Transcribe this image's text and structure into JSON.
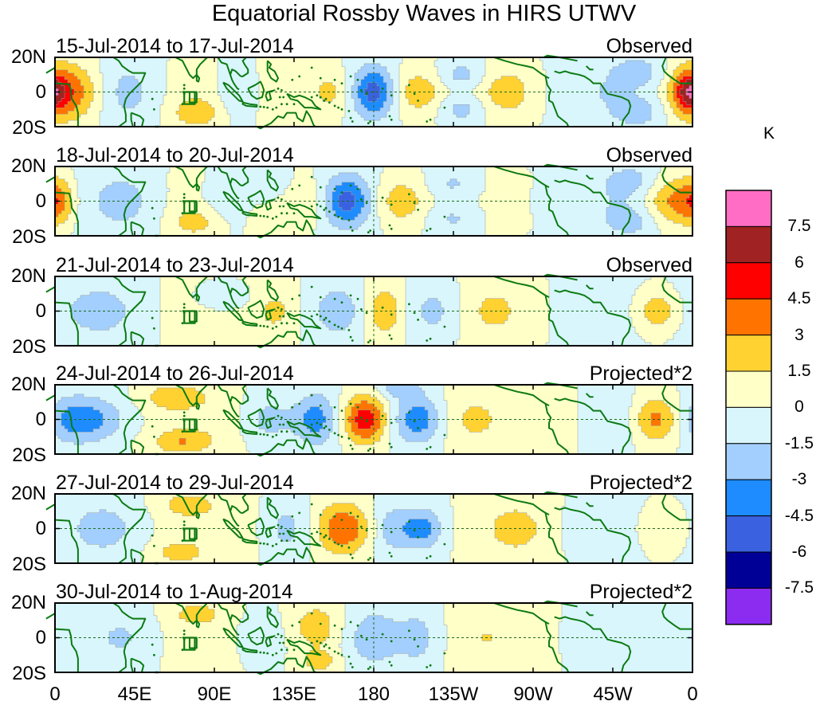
{
  "chart_data": {
    "type": "heatmap",
    "title": "Equatorial Rossby Waves in HIRS UTWV",
    "units": "K",
    "x_tick_labels": [
      "0",
      "45E",
      "90E",
      "135E",
      "180",
      "135W",
      "90W",
      "45W",
      "0"
    ],
    "y_tick_labels": [
      "20N",
      "0",
      "20S"
    ],
    "colorbar": {
      "levels": [
        -7.5,
        -6,
        -4.5,
        -3,
        -1.5,
        0,
        1.5,
        3,
        4.5,
        6,
        7.5
      ],
      "level_labels": [
        "7.5",
        "6",
        "4.5",
        "3",
        "1.5",
        "0",
        "-1.5",
        "-3",
        "-4.5",
        "-6",
        "-7.5"
      ],
      "colors": [
        "#8c2cf0",
        "#000096",
        "#3a62e0",
        "#1e8cff",
        "#a3cfff",
        "#d8f6fc",
        "#ffffc8",
        "#ffd232",
        "#ff7400",
        "#ff0000",
        "#a02222",
        "#ff6ec4"
      ]
    },
    "panels": [
      {
        "dates": "15-Jul-2014 to 17-Jul-2014",
        "kind": "Observed",
        "blobs": [
          {
            "lon": 5,
            "lat": 0,
            "amp": 5.2,
            "sx": 15,
            "sy": 12
          },
          {
            "lon": 358,
            "lat": 0,
            "amp": 4.0,
            "sx": 6,
            "sy": 8
          },
          {
            "lon": 180,
            "lat": 0,
            "amp": -4.8,
            "sx": 8,
            "sy": 10
          },
          {
            "lon": 155,
            "lat": 0,
            "amp": 2.4,
            "sx": 9,
            "sy": 10
          },
          {
            "lon": 205,
            "lat": 0,
            "amp": 2.8,
            "sx": 11,
            "sy": 10
          },
          {
            "lon": 230,
            "lat": 10,
            "amp": -2.3,
            "sx": 10,
            "sy": 6
          },
          {
            "lon": 230,
            "lat": -10,
            "amp": -2.3,
            "sx": 10,
            "sy": 6
          },
          {
            "lon": 255,
            "lat": 0,
            "amp": 2.0,
            "sx": 12,
            "sy": 10
          },
          {
            "lon": 40,
            "lat": 0,
            "amp": -2.2,
            "sx": 14,
            "sy": 14
          },
          {
            "lon": 105,
            "lat": 0,
            "amp": -2.1,
            "sx": 10,
            "sy": 12
          },
          {
            "lon": 80,
            "lat": -12,
            "amp": 2.2,
            "sx": 10,
            "sy": 6
          },
          {
            "lon": 125,
            "lat": 0,
            "amp": 1.6,
            "sx": 10,
            "sy": 12
          },
          {
            "lon": 300,
            "lat": 0,
            "amp": -1.6,
            "sx": 25,
            "sy": 14
          },
          {
            "lon": 330,
            "lat": 12,
            "amp": -1.7,
            "sx": 10,
            "sy": 6
          },
          {
            "lon": 330,
            "lat": -12,
            "amp": -1.7,
            "sx": 10,
            "sy": 6
          }
        ]
      },
      {
        "dates": "18-Jul-2014 to 20-Jul-2014",
        "kind": "Observed",
        "blobs": [
          {
            "lon": 350,
            "lat": 0,
            "amp": 4.3,
            "sx": 12,
            "sy": 10
          },
          {
            "lon": 2,
            "lat": 0,
            "amp": 2.8,
            "sx": 6,
            "sy": 10
          },
          {
            "lon": 165,
            "lat": 0,
            "amp": -4.6,
            "sx": 9,
            "sy": 10
          },
          {
            "lon": 195,
            "lat": 0,
            "amp": 2.9,
            "sx": 11,
            "sy": 10
          },
          {
            "lon": 225,
            "lat": 10,
            "amp": -1.7,
            "sx": 10,
            "sy": 6
          },
          {
            "lon": 225,
            "lat": -10,
            "amp": -1.7,
            "sx": 10,
            "sy": 6
          },
          {
            "lon": 140,
            "lat": 0,
            "amp": 1.8,
            "sx": 9,
            "sy": 10
          },
          {
            "lon": 120,
            "lat": 10,
            "amp": -1.7,
            "sx": 10,
            "sy": 6
          },
          {
            "lon": 40,
            "lat": 0,
            "amp": -2.0,
            "sx": 15,
            "sy": 14
          },
          {
            "lon": 80,
            "lat": -12,
            "amp": 2.0,
            "sx": 10,
            "sy": 6
          },
          {
            "lon": 95,
            "lat": 0,
            "amp": -1.6,
            "sx": 10,
            "sy": 12
          },
          {
            "lon": 300,
            "lat": 0,
            "amp": -1.4,
            "sx": 28,
            "sy": 14
          },
          {
            "lon": 325,
            "lat": 12,
            "amp": -1.6,
            "sx": 9,
            "sy": 6
          },
          {
            "lon": 325,
            "lat": -12,
            "amp": -1.6,
            "sx": 9,
            "sy": 6
          }
        ]
      },
      {
        "dates": "21-Jul-2014 to 23-Jul-2014",
        "kind": "Observed",
        "blobs": [
          {
            "lon": 186,
            "lat": 0,
            "amp": 3.4,
            "sx": 9,
            "sy": 11
          },
          {
            "lon": 160,
            "lat": 0,
            "amp": -1.9,
            "sx": 10,
            "sy": 10
          },
          {
            "lon": 215,
            "lat": 0,
            "amp": -1.8,
            "sx": 12,
            "sy": 11
          },
          {
            "lon": 340,
            "lat": 0,
            "amp": 3.2,
            "sx": 10,
            "sy": 9
          },
          {
            "lon": 125,
            "lat": 0,
            "amp": 1.7,
            "sx": 9,
            "sy": 10
          },
          {
            "lon": 30,
            "lat": 0,
            "amp": -1.7,
            "sx": 18,
            "sy": 14
          },
          {
            "lon": 95,
            "lat": 8,
            "amp": -1.6,
            "sx": 12,
            "sy": 6
          },
          {
            "lon": 245,
            "lat": 0,
            "amp": 1.3,
            "sx": 14,
            "sy": 12
          },
          {
            "lon": 300,
            "lat": 0,
            "amp": -1.3,
            "sx": 20,
            "sy": 14
          }
        ]
      },
      {
        "dates": "24-Jul-2014 to 26-Jul-2014",
        "kind": "Projected*2",
        "blobs": [
          {
            "lon": 175,
            "lat": 0,
            "amp": 6.2,
            "sx": 9,
            "sy": 10
          },
          {
            "lon": 147,
            "lat": 0,
            "amp": -3.4,
            "sx": 8,
            "sy": 10
          },
          {
            "lon": 205,
            "lat": 0,
            "amp": -3.8,
            "sx": 9,
            "sy": 9
          },
          {
            "lon": 195,
            "lat": 18,
            "amp": -2.2,
            "sx": 9,
            "sy": 4
          },
          {
            "lon": 340,
            "lat": 0,
            "amp": 4.4,
            "sx": 11,
            "sy": 10
          },
          {
            "lon": 15,
            "lat": 0,
            "amp": -3.6,
            "sx": 16,
            "sy": 9
          },
          {
            "lon": 68,
            "lat": 13,
            "amp": 2.6,
            "sx": 12,
            "sy": 5
          },
          {
            "lon": 72,
            "lat": -13,
            "amp": 2.6,
            "sx": 12,
            "sy": 5
          },
          {
            "lon": 120,
            "lat": 0,
            "amp": -2.2,
            "sx": 10,
            "sy": 10
          },
          {
            "lon": 235,
            "lat": 0,
            "amp": 1.4,
            "sx": 12,
            "sy": 11
          },
          {
            "lon": 315,
            "lat": 0,
            "amp": -1.6,
            "sx": 12,
            "sy": 12
          }
        ]
      },
      {
        "dates": "27-Jul-2014 to 29-Jul-2014",
        "kind": "Projected*2",
        "blobs": [
          {
            "lon": 163,
            "lat": 0,
            "amp": 5.0,
            "sx": 11,
            "sy": 11
          },
          {
            "lon": 207,
            "lat": 0,
            "amp": -3.6,
            "sx": 8,
            "sy": 8
          },
          {
            "lon": 190,
            "lat": 0,
            "amp": -1.8,
            "sx": 6,
            "sy": 9
          },
          {
            "lon": 130,
            "lat": 0,
            "amp": -1.9,
            "sx": 9,
            "sy": 11
          },
          {
            "lon": 75,
            "lat": 14,
            "amp": 2.0,
            "sx": 11,
            "sy": 5
          },
          {
            "lon": 70,
            "lat": -14,
            "amp": 1.8,
            "sx": 11,
            "sy": 5
          },
          {
            "lon": 30,
            "lat": 0,
            "amp": -1.8,
            "sx": 15,
            "sy": 12
          },
          {
            "lon": 260,
            "lat": 0,
            "amp": 1.3,
            "sx": 14,
            "sy": 12
          },
          {
            "lon": 345,
            "lat": 0,
            "amp": 1.9,
            "sx": 11,
            "sy": 10
          },
          {
            "lon": 300,
            "lat": 0,
            "amp": -1.3,
            "sx": 14,
            "sy": 12
          }
        ]
      },
      {
        "dates": "30-Jul-2014 to 1-Aug-2014",
        "kind": "Projected*2",
        "blobs": [
          {
            "lon": 148,
            "lat": 6,
            "amp": 2.8,
            "sx": 10,
            "sy": 10
          },
          {
            "lon": 150,
            "lat": -14,
            "amp": 2.2,
            "sx": 8,
            "sy": 5
          },
          {
            "lon": 180,
            "lat": 0,
            "amp": -1.9,
            "sx": 9,
            "sy": 11
          },
          {
            "lon": 205,
            "lat": 0,
            "amp": -1.8,
            "sx": 9,
            "sy": 11
          },
          {
            "lon": 80,
            "lat": 14,
            "amp": 1.7,
            "sx": 11,
            "sy": 5
          },
          {
            "lon": 115,
            "lat": 0,
            "amp": -1.7,
            "sx": 9,
            "sy": 10
          },
          {
            "lon": 40,
            "lat": 0,
            "amp": -1.6,
            "sx": 14,
            "sy": 12
          },
          {
            "lon": 240,
            "lat": 0,
            "amp": 1.0,
            "sx": 14,
            "sy": 12
          },
          {
            "lon": 300,
            "lat": 0,
            "amp": -1.1,
            "sx": 14,
            "sy": 12
          }
        ]
      }
    ]
  }
}
